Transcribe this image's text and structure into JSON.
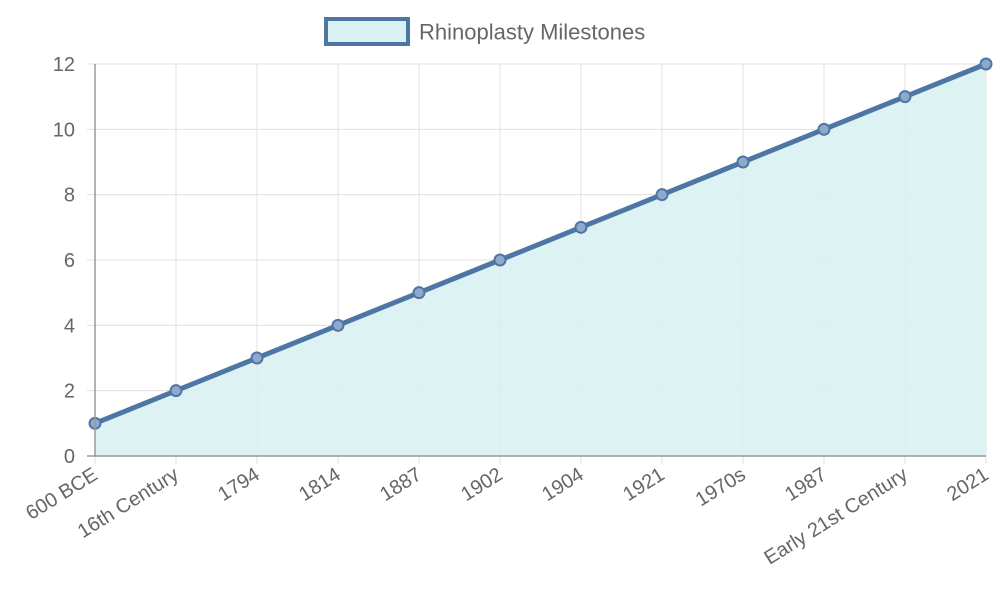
{
  "chart_data": {
    "type": "area",
    "title": "",
    "xlabel": "",
    "ylabel": "",
    "categories": [
      "600 BCE",
      "16th Century",
      "1794",
      "1814",
      "1887",
      "1902",
      "1904",
      "1921",
      "1970s",
      "1987",
      "Early 21st Century",
      "2021"
    ],
    "series": [
      {
        "name": "Rhinoplasty Milestones",
        "values": [
          1,
          2,
          3,
          4,
          5,
          6,
          7,
          8,
          9,
          10,
          11,
          12
        ]
      }
    ],
    "ylim": [
      0,
      12
    ],
    "yticks": [
      "0",
      "2",
      "4",
      "6",
      "8",
      "10",
      "12"
    ],
    "grid": true,
    "legend": "top-center",
    "colors": {
      "line": "#4e76a5",
      "fill": "#d9f1f2",
      "grid": "#e0e0e0",
      "axis": "#9a9a9a"
    }
  }
}
